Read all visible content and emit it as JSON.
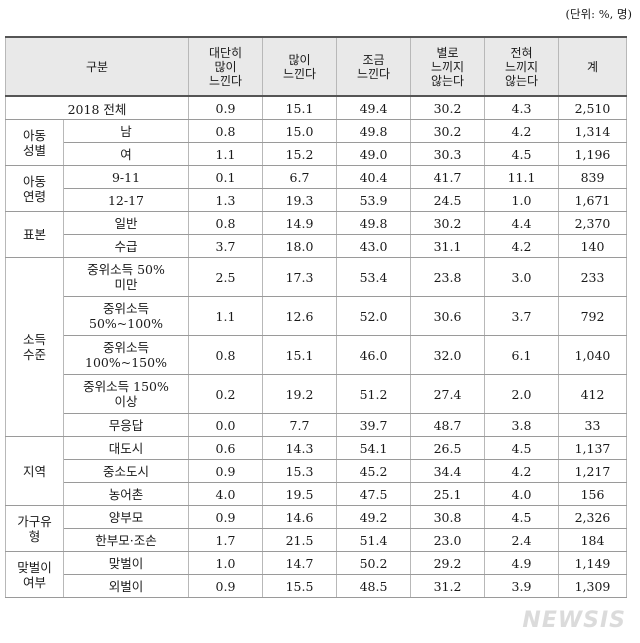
{
  "unit_note": "(단위: %, 명)",
  "header": {
    "category": "구분",
    "col1": "대단히\n많이\n느낀다",
    "col2": "많이\n느낀다",
    "col3": "조금\n느낀다",
    "col4": "별로\n느끼지\n않는다",
    "col5": "전혀\n느끼지\n않는다",
    "col6": "계"
  },
  "total": {
    "label": "2018 전체",
    "v": [
      "0.9",
      "15.1",
      "49.4",
      "30.2",
      "4.3",
      "2,510"
    ]
  },
  "groups": [
    {
      "name": "아동\n성별",
      "rows": [
        {
          "label": "남",
          "v": [
            "0.8",
            "15.0",
            "49.8",
            "30.2",
            "4.2",
            "1,314"
          ]
        },
        {
          "label": "여",
          "v": [
            "1.1",
            "15.2",
            "49.0",
            "30.3",
            "4.5",
            "1,196"
          ]
        }
      ]
    },
    {
      "name": "아동\n연령",
      "rows": [
        {
          "label": "9-11",
          "v": [
            "0.1",
            "6.7",
            "40.4",
            "41.7",
            "11.1",
            "839"
          ]
        },
        {
          "label": "12-17",
          "v": [
            "1.3",
            "19.3",
            "53.9",
            "24.5",
            "1.0",
            "1,671"
          ]
        }
      ]
    },
    {
      "name": "표본",
      "rows": [
        {
          "label": "일반",
          "v": [
            "0.8",
            "14.9",
            "49.8",
            "30.2",
            "4.4",
            "2,370"
          ]
        },
        {
          "label": "수급",
          "v": [
            "3.7",
            "18.0",
            "43.0",
            "31.1",
            "4.2",
            "140"
          ]
        }
      ]
    },
    {
      "name": "소득\n수준",
      "rows": [
        {
          "label": "중위소득 50%\n미만",
          "v": [
            "2.5",
            "17.3",
            "53.4",
            "23.8",
            "3.0",
            "233"
          ]
        },
        {
          "label": "중위소득\n50%~100%",
          "v": [
            "1.1",
            "12.6",
            "52.0",
            "30.6",
            "3.7",
            "792"
          ]
        },
        {
          "label": "중위소득\n100%~150%",
          "v": [
            "0.8",
            "15.1",
            "46.0",
            "32.0",
            "6.1",
            "1,040"
          ]
        },
        {
          "label": "중위소득 150%\n이상",
          "v": [
            "0.2",
            "19.2",
            "51.2",
            "27.4",
            "2.0",
            "412"
          ]
        },
        {
          "label": "무응답",
          "v": [
            "0.0",
            "7.7",
            "39.7",
            "48.7",
            "3.8",
            "33"
          ]
        }
      ]
    },
    {
      "name": "지역",
      "rows": [
        {
          "label": "대도시",
          "v": [
            "0.6",
            "14.3",
            "54.1",
            "26.5",
            "4.5",
            "1,137"
          ]
        },
        {
          "label": "중소도시",
          "v": [
            "0.9",
            "15.3",
            "45.2",
            "34.4",
            "4.2",
            "1,217"
          ]
        },
        {
          "label": "농어촌",
          "v": [
            "4.0",
            "19.5",
            "47.5",
            "25.1",
            "4.0",
            "156"
          ]
        }
      ]
    },
    {
      "name": "가구유\n형",
      "rows": [
        {
          "label": "양부모",
          "v": [
            "0.9",
            "14.6",
            "49.2",
            "30.8",
            "4.5",
            "2,326"
          ]
        },
        {
          "label": "한부모·조손",
          "v": [
            "1.7",
            "21.5",
            "51.4",
            "23.0",
            "2.4",
            "184"
          ]
        }
      ]
    },
    {
      "name": "맞벌이\n여부",
      "rows": [
        {
          "label": "맞벌이",
          "v": [
            "1.0",
            "14.7",
            "50.2",
            "29.2",
            "4.9",
            "1,149"
          ]
        },
        {
          "label": "외벌이",
          "v": [
            "0.9",
            "15.5",
            "48.5",
            "31.2",
            "3.9",
            "1,309"
          ]
        }
      ]
    }
  ],
  "watermark": "NEWSIS"
}
